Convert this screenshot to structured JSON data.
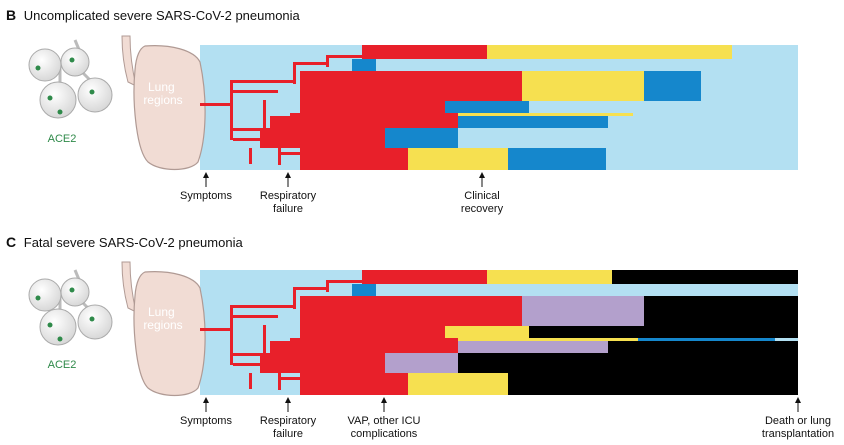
{
  "colors": {
    "background_region": "#b3e0f2",
    "red": "#e8202a",
    "yellow": "#f6e050",
    "blue": "#1587cc",
    "purple": "#b3a0cc",
    "black": "#000000",
    "lung": "#f1dcd4",
    "alveoli_dot": "#2f8a4a"
  },
  "panels": [
    {
      "letter": "B",
      "title": "Uncomplicated severe SARS-CoV-2 pneumonia",
      "ace2_label": "ACE2",
      "lung_label_line1": "Lung",
      "lung_label_line2": "regions",
      "markers": [
        {
          "line1": "Symptoms",
          "line2": ""
        },
        {
          "line1": "Respiratory",
          "line2": "failure"
        },
        {
          "line1": "Clinical",
          "line2": "recovery"
        }
      ]
    },
    {
      "letter": "C",
      "title": "Fatal severe SARS-CoV-2 pneumonia",
      "ace2_label": "ACE2",
      "lung_label_line1": "Lung",
      "lung_label_line2": "regions",
      "markers": [
        {
          "line1": "Symptoms",
          "line2": ""
        },
        {
          "line1": "Respiratory",
          "line2": "failure"
        },
        {
          "line1": "VAP, other ICU",
          "line2": "complications"
        },
        {
          "line1": "Death or lung",
          "line2": "transplantation"
        }
      ]
    }
  ]
}
